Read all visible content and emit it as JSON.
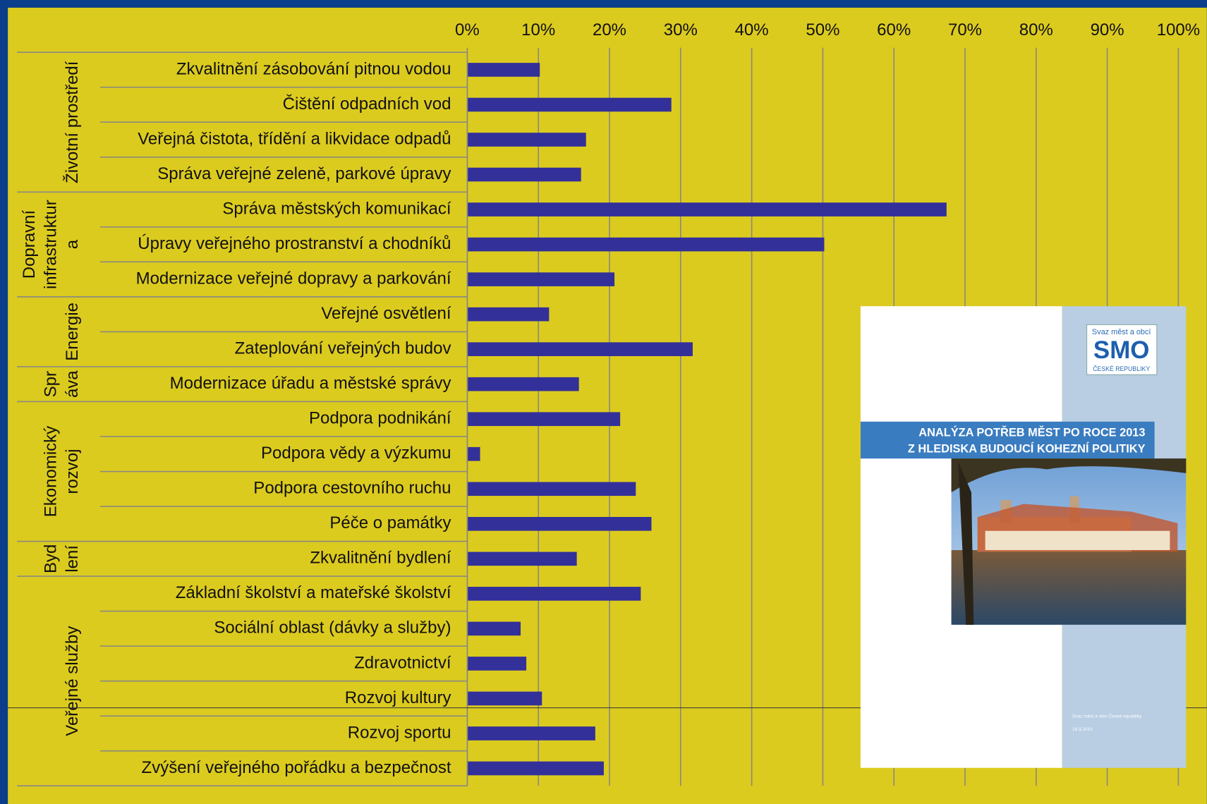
{
  "chart_data": {
    "type": "bar",
    "orientation": "horizontal",
    "color": "#33309a",
    "grid": true,
    "xlim": [
      0,
      100
    ],
    "xticks": [
      {
        "value": 0,
        "label": "0%"
      },
      {
        "value": 10,
        "label": "10%"
      },
      {
        "value": 20,
        "label": "20%"
      },
      {
        "value": 30,
        "label": "30%"
      },
      {
        "value": 40,
        "label": "40%"
      },
      {
        "value": 50,
        "label": "50%"
      },
      {
        "value": 60,
        "label": "60%"
      },
      {
        "value": 70,
        "label": "70%"
      },
      {
        "value": 80,
        "label": "80%"
      },
      {
        "value": 90,
        "label": "90%"
      },
      {
        "value": 100,
        "label": "100%"
      }
    ],
    "groups": [
      {
        "name_lines": [
          "Životní prostředí"
        ],
        "categories": [
          "Zkvalitnění zásobování pitnou vodou",
          "Čištění odpadních vod",
          "Veřejná čistota, třídění a likvidace odpadů",
          "Správa veřejné zeleně, parkové úpravy"
        ],
        "values": [
          10.2,
          28.7,
          16.7,
          16
        ]
      },
      {
        "name_lines": [
          "Dopravní",
          "infrastruktur",
          "a"
        ],
        "categories": [
          "Správa městských komunikací",
          "Úpravy veřejného prostranství a chodníků",
          "Modernizace veřejné dopravy a parkování"
        ],
        "values": [
          67.4,
          50.2,
          20.7
        ]
      },
      {
        "name_lines": [
          "Energie"
        ],
        "categories": [
          "Veřejné osvětlení",
          "Zateplování veřejných budov"
        ],
        "values": [
          11.5,
          31.7
        ]
      },
      {
        "name_lines": [
          "Spr",
          "áva"
        ],
        "categories": [
          "Modernizace úřadu a městské správy"
        ],
        "values": [
          15.7
        ]
      },
      {
        "name_lines": [
          "Ekonomický",
          "rozvoj"
        ],
        "categories": [
          "Podpora podnikání",
          "Podpora vědy a výzkumu",
          "Podpora cestovního ruchu",
          "Péče o památky"
        ],
        "values": [
          21.5,
          1.8,
          23.7,
          25.9
        ]
      },
      {
        "name_lines": [
          "Byd",
          "lení"
        ],
        "categories": [
          "Zkvalitnění bydlení"
        ],
        "values": [
          15.4
        ]
      },
      {
        "name_lines": [
          "Veřejné služby"
        ],
        "categories": [
          "Základní školství a mateřské školství",
          "Sociální oblast (dávky a služby)",
          "Zdravotnictví",
          "Rozvoj kultury",
          "Rozvoj sportu",
          "Zvýšení veřejného pořádku a bezpečnost"
        ],
        "values": [
          24.4,
          7.5,
          8.3,
          10.5,
          18,
          19.2
        ]
      }
    ]
  },
  "cover": {
    "logo_top": "Svaz měst a obcí",
    "logo": "SMO",
    "logo_bottom": "ČESKÉ REPUBLIKY",
    "title_lines": [
      "ANALÝZA POTŘEB MĚST PO ROCE 2013",
      "Z HLEDISKA BUDOUCÍ KOHEZNÍ POLITIKY"
    ],
    "publisher": "Svaz měst a obcí České republiky",
    "date": "18.3.2010"
  }
}
